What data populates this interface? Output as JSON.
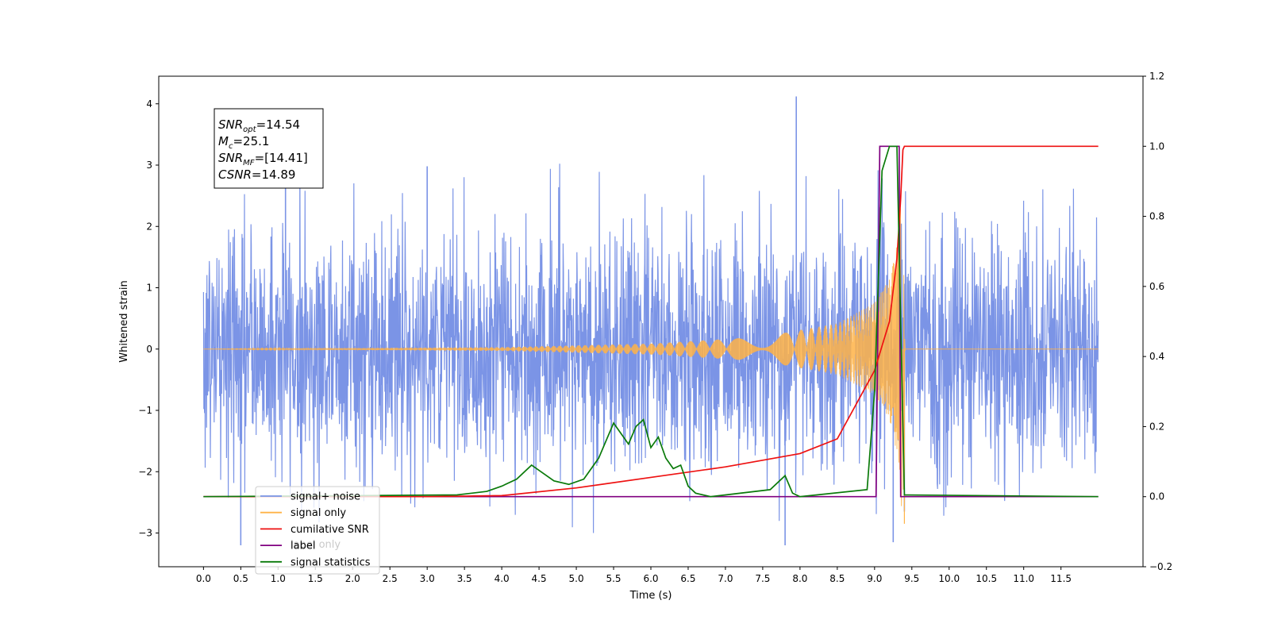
{
  "chart_data": {
    "type": "line",
    "xlabel": "Time (s)",
    "ylabel": "Whitened strain",
    "xlim": [
      -0.6,
      12.6
    ],
    "ylim": [
      -3.55,
      4.45
    ],
    "y2lim": [
      -0.2,
      1.2
    ],
    "x_ticks": [
      0.0,
      0.5,
      1.0,
      1.5,
      2.0,
      2.5,
      3.0,
      3.5,
      4.0,
      4.5,
      5.0,
      5.5,
      6.0,
      6.5,
      7.0,
      7.5,
      8.0,
      8.5,
      9.0,
      9.5,
      10.0,
      10.5,
      11.0,
      11.5
    ],
    "x_tick_labels": [
      "0.0",
      "0.5",
      "1.0",
      "1.5",
      "2.0",
      "2.5",
      "3.0",
      "3.5",
      "4.0",
      "4.5",
      "5.0",
      "5.5",
      "6.0",
      "6.5",
      "7.0",
      "7.5",
      "8.0",
      "8.5",
      "9.0",
      "9.5",
      "10.0",
      "10.5",
      "11.0",
      "11.5"
    ],
    "y_ticks": [
      -3,
      -2,
      -1,
      0,
      1,
      2,
      3,
      4
    ],
    "y_tick_labels": [
      "−3",
      "−2",
      "−1",
      "0",
      "1",
      "2",
      "3",
      "4"
    ],
    "y2_ticks": [
      -0.2,
      0.0,
      0.2,
      0.4,
      0.6,
      0.8,
      1.0,
      1.2
    ],
    "y2_tick_labels": [
      "−0.2",
      "0.0",
      "0.2",
      "0.4",
      "0.6",
      "0.8",
      "1.0",
      "1.2"
    ],
    "grid": false,
    "legend_position": "bottom-left",
    "annotation": {
      "lines": [
        {
          "base": "SNR",
          "sub": "opt",
          "rest": "=14.54"
        },
        {
          "base": "M",
          "sub": "c",
          "rest": "=25.1"
        },
        {
          "base": "SNR",
          "sub": "MF",
          "rest": "=[14.41]"
        },
        {
          "base": "CSNR",
          "sub": "",
          "rest": "=14.89"
        }
      ]
    },
    "series": [
      {
        "name": "signal+ noise",
        "axis": "left",
        "color": "#7b94e6",
        "description": "whitened noise plus signal, std about 1",
        "x_range": [
          0.0,
          12.0
        ],
        "peaks": [
          {
            "x": 1.1,
            "y": 2.65
          },
          {
            "x": 3.0,
            "y": 2.98
          },
          {
            "x": 7.95,
            "y": 4.12
          },
          {
            "x": 0.5,
            "y": -3.2
          },
          {
            "x": 7.8,
            "y": -3.2
          },
          {
            "x": 9.25,
            "y": -3.15
          },
          {
            "x": 9.4,
            "y": -2.65
          }
        ]
      },
      {
        "name": "signal only",
        "axis": "left",
        "color": "#ffb347",
        "description": "chirp: amplitude grows from near 0 to about 2.9, cuts off at merger",
        "amplitude_points": [
          [
            0.0,
            0.0
          ],
          [
            4.0,
            0.03
          ],
          [
            6.0,
            0.09
          ],
          [
            7.5,
            0.2
          ],
          [
            8.5,
            0.42
          ],
          [
            9.0,
            0.75
          ],
          [
            9.2,
            1.15
          ],
          [
            9.3,
            1.7
          ],
          [
            9.38,
            2.85
          ],
          [
            9.41,
            0.0
          ]
        ]
      },
      {
        "name": "cumilative SNR",
        "axis": "right",
        "color": "#ee1111",
        "x": [
          0.0,
          3.0,
          4.0,
          5.0,
          6.0,
          7.0,
          8.0,
          8.5,
          9.0,
          9.2,
          9.3,
          9.35,
          9.38,
          9.4,
          12.0
        ],
        "y": [
          0.0,
          0.0,
          0.003,
          0.025,
          0.055,
          0.085,
          0.123,
          0.165,
          0.36,
          0.5,
          0.68,
          0.85,
          0.99,
          1.0,
          1.0
        ]
      },
      {
        "name": "label",
        "axis": "right",
        "color": "#800080",
        "x": [
          0.0,
          9.02,
          9.07,
          9.33,
          9.35,
          12.0
        ],
        "y": [
          0.0,
          0.0,
          1.0,
          1.0,
          0.0,
          0.0
        ]
      },
      {
        "name": "label only",
        "axis": "right",
        "color": "#800080",
        "x": [],
        "y": []
      },
      {
        "name": "signal statistics",
        "axis": "right",
        "color": "#0a7a0a",
        "x": [
          0.0,
          3.4,
          3.6,
          3.8,
          4.0,
          4.2,
          4.4,
          4.6,
          4.7,
          4.9,
          5.1,
          5.3,
          5.4,
          5.5,
          5.6,
          5.7,
          5.8,
          5.9,
          6.0,
          6.1,
          6.2,
          6.3,
          6.4,
          6.5,
          6.6,
          6.8,
          7.6,
          7.8,
          7.9,
          8.0,
          8.9,
          9.0,
          9.1,
          9.2,
          9.3,
          9.35,
          9.4,
          12.0
        ],
        "y": [
          0.0,
          0.005,
          0.01,
          0.015,
          0.03,
          0.05,
          0.09,
          0.06,
          0.045,
          0.035,
          0.05,
          0.11,
          0.16,
          0.21,
          0.18,
          0.15,
          0.2,
          0.22,
          0.14,
          0.17,
          0.11,
          0.08,
          0.09,
          0.03,
          0.01,
          0.0,
          0.02,
          0.06,
          0.01,
          0.0,
          0.02,
          0.3,
          0.93,
          1.0,
          1.0,
          0.5,
          0.005,
          0.0
        ]
      }
    ]
  }
}
